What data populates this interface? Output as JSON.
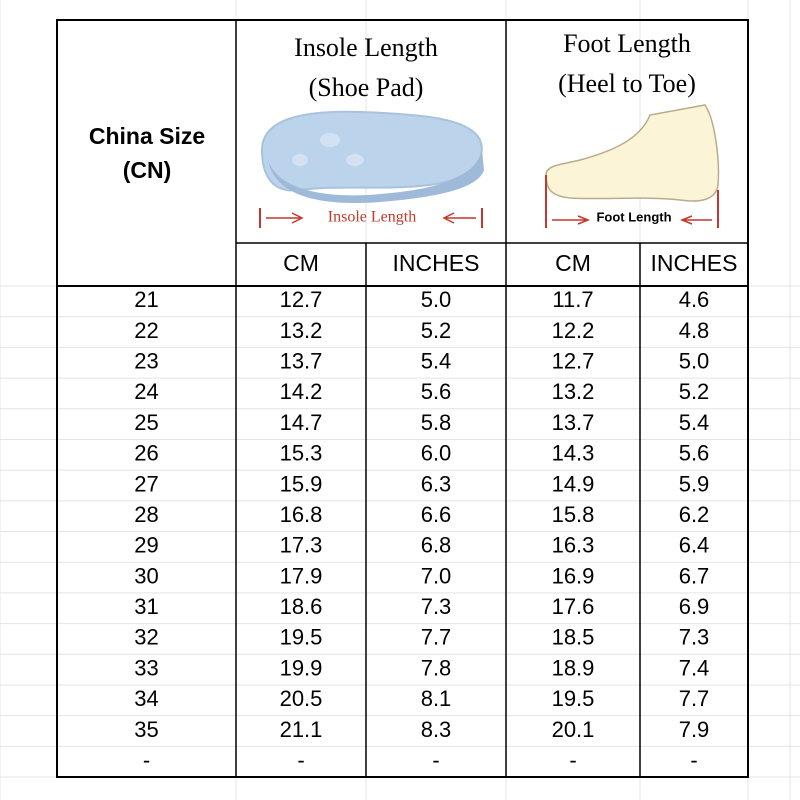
{
  "header": {
    "china_size": [
      "China Size",
      "(CN)"
    ],
    "insole": {
      "title": [
        "Insole Length",
        "(Shoe Pad)"
      ],
      "caption": "Insole Length"
    },
    "foot": {
      "title": [
        "Foot Length",
        "(Heel to Toe)"
      ],
      "caption": "Foot Length"
    },
    "subheaders": [
      "CM",
      "INCHES",
      "CM",
      "INCHES"
    ]
  },
  "table": {
    "rows": [
      [
        "21",
        "12.7",
        "5.0",
        "11.7",
        "4.6"
      ],
      [
        "22",
        "13.2",
        "5.2",
        "12.2",
        "4.8"
      ],
      [
        "23",
        "13.7",
        "5.4",
        "12.7",
        "5.0"
      ],
      [
        "24",
        "14.2",
        "5.6",
        "13.2",
        "5.2"
      ],
      [
        "25",
        "14.7",
        "5.8",
        "13.7",
        "5.4"
      ],
      [
        "26",
        "15.3",
        "6.0",
        "14.3",
        "5.6"
      ],
      [
        "27",
        "15.9",
        "6.3",
        "14.9",
        "5.9"
      ],
      [
        "28",
        "16.8",
        "6.6",
        "15.8",
        "6.2"
      ],
      [
        "29",
        "17.3",
        "6.8",
        "16.3",
        "6.4"
      ],
      [
        "30",
        "17.9",
        "7.0",
        "16.9",
        "6.7"
      ],
      [
        "31",
        "18.6",
        "7.3",
        "17.6",
        "6.9"
      ],
      [
        "32",
        "19.5",
        "7.7",
        "18.5",
        "7.3"
      ],
      [
        "33",
        "19.9",
        "7.8",
        "18.9",
        "7.4"
      ],
      [
        "34",
        "20.5",
        "8.1",
        "19.5",
        "7.7"
      ],
      [
        "35",
        "21.1",
        "8.3",
        "20.1",
        "7.9"
      ],
      [
        "-",
        "-",
        "-",
        "-",
        "-"
      ]
    ]
  }
}
